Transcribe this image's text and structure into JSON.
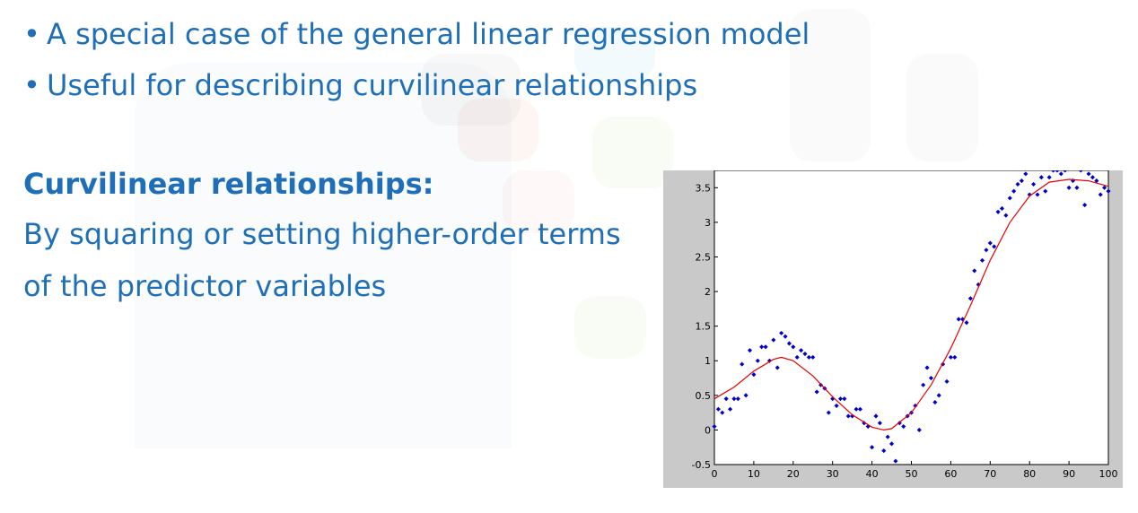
{
  "slide": {
    "bullets": [
      "A special case of the general linear regression model",
      "Useful for describing curvilinear relationships"
    ],
    "bullet_glyph": "•",
    "heading": "Curvilinear relationships:",
    "body_lines": [
      "By squaring or setting higher-order terms",
      "of the predictor variables"
    ],
    "text_color": "#1f6fb8"
  },
  "chart_data": {
    "type": "scatter",
    "title": "",
    "xlabel": "",
    "ylabel": "",
    "xlim": [
      0,
      100
    ],
    "ylim": [
      -0.5,
      3.75
    ],
    "x_ticks": [
      "0",
      "10",
      "20",
      "30",
      "40",
      "50",
      "60",
      "70",
      "80",
      "90",
      "100"
    ],
    "y_ticks": [
      "-0.5",
      "0",
      "0.5",
      "1",
      "1.5",
      "2",
      "2.5",
      "3",
      "3.5"
    ],
    "grid": false,
    "series": [
      {
        "kind": "points",
        "color": "#0000cc",
        "x": [
          0,
          1,
          2,
          3,
          4,
          5,
          6,
          7,
          8,
          9,
          10,
          11,
          12,
          13,
          14,
          15,
          16,
          17,
          18,
          19,
          20,
          21,
          22,
          23,
          24,
          25,
          26,
          27,
          28,
          29,
          30,
          31,
          32,
          33,
          34,
          35,
          36,
          37,
          38,
          39,
          40,
          41,
          42,
          43,
          44,
          45,
          46,
          47,
          48,
          49,
          50,
          51,
          52,
          53,
          54,
          55,
          56,
          57,
          58,
          59,
          60,
          61,
          62,
          63,
          64,
          65,
          66,
          67,
          68,
          69,
          70,
          71,
          72,
          73,
          74,
          75,
          76,
          77,
          78,
          79,
          80,
          81,
          82,
          83,
          84,
          85,
          86,
          87,
          88,
          89,
          90,
          91,
          92,
          93,
          94,
          95,
          96,
          97,
          98,
          99,
          100
        ],
        "y": [
          0.05,
          0.3,
          0.25,
          0.45,
          0.3,
          0.45,
          0.45,
          0.95,
          0.5,
          1.15,
          0.8,
          1.0,
          1.2,
          1.2,
          1.0,
          1.3,
          0.9,
          1.4,
          1.35,
          1.25,
          1.2,
          1.05,
          1.15,
          1.1,
          1.05,
          1.05,
          0.55,
          0.65,
          0.6,
          0.25,
          0.45,
          0.35,
          0.45,
          0.45,
          0.2,
          0.2,
          0.3,
          0.3,
          0.1,
          0.05,
          -0.25,
          0.2,
          0.1,
          -0.3,
          -0.1,
          -0.2,
          -0.45,
          0.1,
          0.05,
          0.2,
          0.25,
          0.35,
          0.0,
          0.65,
          0.9,
          0.75,
          0.4,
          0.5,
          0.95,
          0.7,
          1.05,
          1.05,
          1.6,
          1.6,
          1.55,
          1.9,
          2.3,
          2.1,
          2.45,
          2.6,
          2.7,
          2.65,
          3.15,
          3.2,
          3.1,
          3.35,
          3.45,
          3.55,
          3.6,
          3.7,
          3.4,
          3.55,
          3.4,
          3.65,
          3.45,
          3.65,
          3.75,
          3.75,
          3.7,
          3.75,
          3.5,
          3.6,
          3.5,
          3.75,
          3.25,
          3.7,
          3.65,
          3.6,
          3.4,
          3.5,
          3.45
        ]
      },
      {
        "kind": "fit-line",
        "color": "#e60000",
        "x": [
          0,
          5,
          10,
          15,
          17,
          20,
          25,
          30,
          35,
          40,
          43,
          45,
          50,
          55,
          60,
          65,
          70,
          75,
          80,
          85,
          90,
          95,
          100
        ],
        "y": [
          0.45,
          0.62,
          0.85,
          1.02,
          1.05,
          1.0,
          0.78,
          0.48,
          0.22,
          0.04,
          0.0,
          0.02,
          0.25,
          0.65,
          1.18,
          1.8,
          2.45,
          3.0,
          3.38,
          3.58,
          3.62,
          3.6,
          3.52
        ]
      }
    ]
  }
}
